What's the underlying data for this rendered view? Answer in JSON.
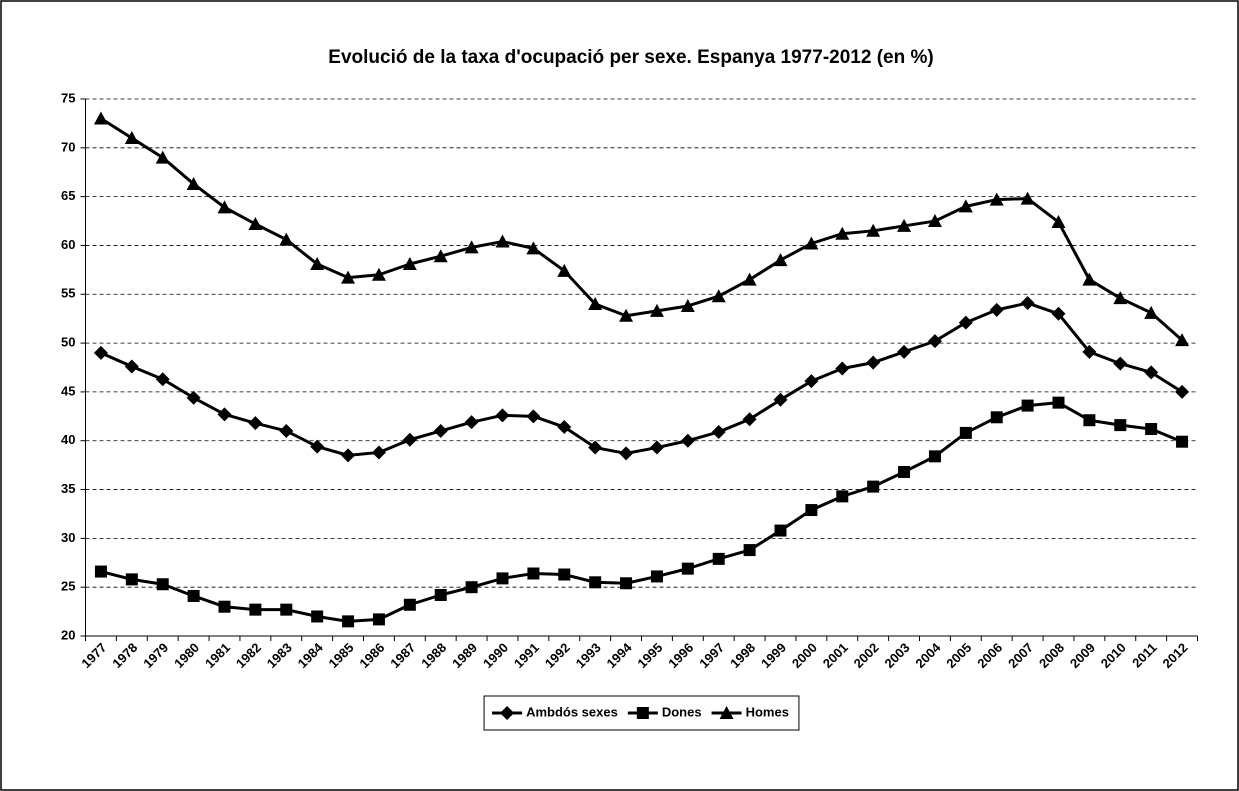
{
  "chart_data": {
    "type": "line",
    "title": "Evolució de la taxa d'ocupació per sexe. Espanya 1977-2012 (en %)",
    "categories": [
      "1977",
      "1978",
      "1979",
      "1980",
      "1981",
      "1982",
      "1983",
      "1984",
      "1985",
      "1986",
      "1987",
      "1988",
      "1989",
      "1990",
      "1991",
      "1992",
      "1993",
      "1994",
      "1995",
      "1996",
      "1997",
      "1998",
      "1999",
      "2000",
      "2001",
      "2002",
      "2003",
      "2004",
      "2005",
      "2006",
      "2007",
      "2008",
      "2009",
      "2010",
      "2011",
      "2012"
    ],
    "series": [
      {
        "name": "Ambdós sexes",
        "color": "#000000",
        "marker": "diamond",
        "values": [
          49.0,
          47.6,
          46.3,
          44.4,
          42.7,
          41.8,
          41.0,
          39.4,
          38.5,
          38.8,
          40.1,
          41.0,
          41.9,
          42.6,
          42.5,
          41.4,
          39.3,
          38.7,
          39.3,
          40.0,
          40.9,
          42.2,
          44.2,
          46.1,
          47.4,
          48.0,
          49.1,
          50.2,
          52.1,
          53.4,
          54.1,
          53.0,
          49.1,
          47.9,
          47.0,
          45.0
        ]
      },
      {
        "name": "Dones",
        "color": "#000000",
        "marker": "square",
        "values": [
          26.6,
          25.8,
          25.3,
          24.1,
          23.0,
          22.7,
          22.7,
          22.0,
          21.5,
          21.7,
          23.2,
          24.2,
          25.0,
          25.9,
          26.4,
          26.3,
          25.5,
          25.4,
          26.1,
          26.9,
          27.9,
          28.8,
          30.8,
          32.9,
          34.3,
          35.3,
          36.8,
          38.4,
          40.8,
          42.4,
          43.6,
          43.9,
          42.1,
          41.6,
          41.2,
          39.9
        ]
      },
      {
        "name": "Homes",
        "color": "#000000",
        "marker": "triangle",
        "values": [
          73.0,
          71.0,
          69.0,
          66.3,
          63.9,
          62.2,
          60.6,
          58.1,
          56.7,
          57.0,
          58.1,
          58.9,
          59.8,
          60.4,
          59.7,
          57.4,
          54.0,
          52.8,
          53.3,
          53.8,
          54.8,
          56.5,
          58.5,
          60.2,
          61.2,
          61.5,
          62.0,
          62.5,
          64.0,
          64.7,
          64.8,
          62.4,
          56.5,
          54.6,
          53.1,
          50.3
        ]
      }
    ],
    "ylim": [
      20,
      75
    ],
    "yticks": [
      20,
      25,
      30,
      35,
      40,
      45,
      50,
      55,
      60,
      65,
      70,
      75
    ],
    "grid": true,
    "legend": "bottom"
  }
}
